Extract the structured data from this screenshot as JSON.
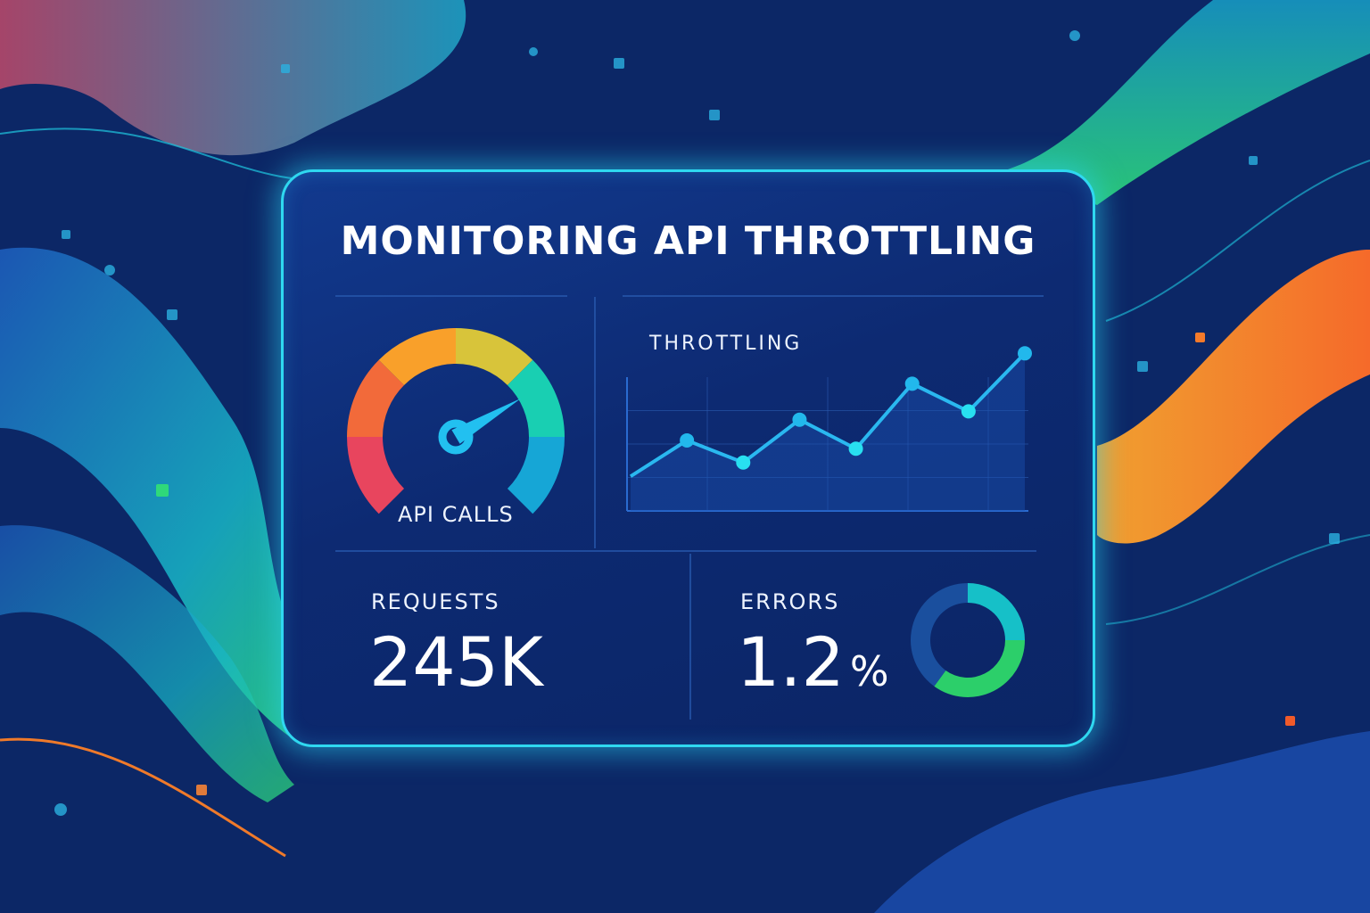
{
  "title": "MONITORING API THROTTLING",
  "gauge": {
    "label": "API CALLS",
    "level_percent": 72,
    "segment_colors": [
      "#e8455e",
      "#f26a3a",
      "#f9a02a",
      "#d8c43a",
      "#19cfb2",
      "#16a6d6"
    ],
    "needle_color": "#22c0f0"
  },
  "chart_data": {
    "type": "line",
    "title": "THROTTLING",
    "x": [
      1,
      2,
      3,
      4,
      5,
      6,
      7,
      8
    ],
    "values": [
      25,
      51,
      35,
      66,
      45,
      92,
      72,
      114
    ],
    "ylim": [
      0,
      120
    ],
    "grid": true,
    "line_color": "#2ab8f0",
    "area_fill": true
  },
  "requests": {
    "label": "REQUESTS",
    "value": "245K"
  },
  "errors": {
    "label": "ERRORS",
    "value": "1.2",
    "unit": "%",
    "donut_segments": [
      {
        "color": "#16c0c8",
        "fraction": 0.25
      },
      {
        "color": "#2ccf6a",
        "fraction": 0.35
      },
      {
        "color": "#1a4f9e",
        "fraction": 0.4
      }
    ]
  },
  "colors": {
    "background": "#0c2766",
    "card_border": "#2fd8f0",
    "accent_orange": "#f57a2a",
    "accent_green": "#2fd97a"
  }
}
